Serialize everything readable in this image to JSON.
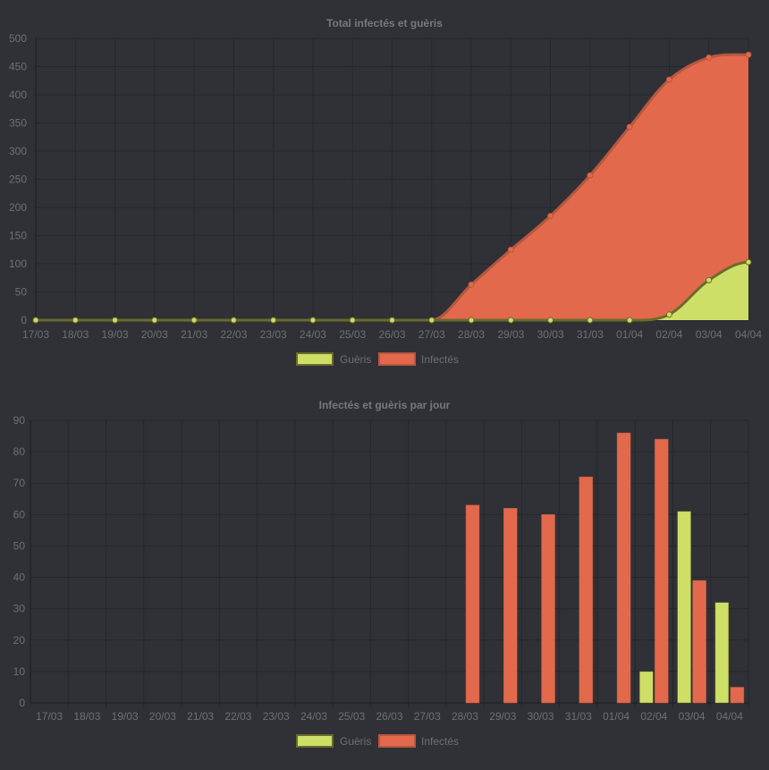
{
  "colors": {
    "gueris": "#cddf67",
    "gueris_border": "#6b6a2a",
    "infectes": "#e3694c",
    "infectes_border": "#b5573f",
    "grid": "#26272b",
    "text": "#6f7075",
    "title": "#77787c"
  },
  "chart_data": [
    {
      "type": "area",
      "title": "Total infectés et guèris",
      "categories": [
        "17/03",
        "18/03",
        "19/03",
        "20/03",
        "21/03",
        "22/03",
        "23/03",
        "24/03",
        "25/03",
        "26/03",
        "27/03",
        "28/03",
        "29/03",
        "30/03",
        "31/03",
        "01/04",
        "02/04",
        "03/04",
        "04/04"
      ],
      "series": [
        {
          "name": "Guèris",
          "values": [
            0,
            0,
            0,
            0,
            0,
            0,
            0,
            0,
            0,
            0,
            0,
            0,
            0,
            0,
            0,
            0,
            10,
            71,
            103
          ]
        },
        {
          "name": "Infectés",
          "values": [
            0,
            0,
            0,
            0,
            0,
            0,
            0,
            0,
            0,
            0,
            0,
            63,
            125,
            185,
            257,
            343,
            427,
            466,
            471
          ]
        }
      ],
      "ylim": [
        0,
        500
      ],
      "yticks": [
        0,
        50,
        100,
        150,
        200,
        250,
        300,
        350,
        400,
        450,
        500
      ],
      "grid": true,
      "legend": "bottom"
    },
    {
      "type": "bar",
      "title": "Infectés et guèris par jour",
      "categories": [
        "17/03",
        "18/03",
        "19/03",
        "20/03",
        "21/03",
        "22/03",
        "23/03",
        "24/03",
        "25/03",
        "26/03",
        "27/03",
        "28/03",
        "29/03",
        "30/03",
        "31/03",
        "01/04",
        "02/04",
        "03/04",
        "04/04"
      ],
      "series": [
        {
          "name": "Guèris",
          "values": [
            0,
            0,
            0,
            0,
            0,
            0,
            0,
            0,
            0,
            0,
            0,
            0,
            0,
            0,
            0,
            0,
            10,
            61,
            32
          ]
        },
        {
          "name": "Infectés",
          "values": [
            0,
            0,
            0,
            0,
            0,
            0,
            0,
            0,
            0,
            0,
            0,
            63,
            62,
            60,
            72,
            86,
            84,
            39,
            5
          ]
        }
      ],
      "ylim": [
        0,
        90
      ],
      "yticks": [
        0,
        10,
        20,
        30,
        40,
        50,
        60,
        70,
        80,
        90
      ],
      "grid": true,
      "legend": "bottom"
    }
  ]
}
